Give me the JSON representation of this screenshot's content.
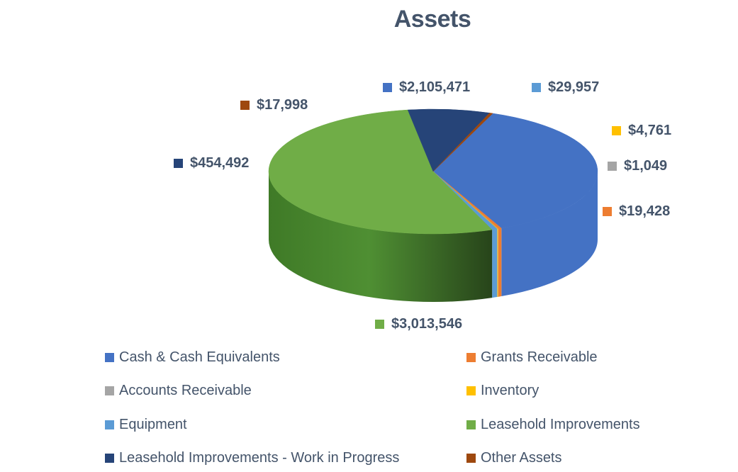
{
  "chart_data": {
    "type": "pie",
    "title": "Assets",
    "categories": [
      "Cash & Cash Equivalents",
      "Grants Receivable",
      "Accounts Receivable",
      "Inventory",
      "Equipment",
      "Leasehold Improvements",
      "Leasehold Improvements - Work in Progress",
      "Other Assets"
    ],
    "values": [
      2105471,
      19428,
      1049,
      4761,
      29957,
      3013546,
      454492,
      17998
    ],
    "data_labels": [
      "$2,105,471",
      "$19,428",
      "$1,049",
      "$4,761",
      "$29,957",
      "$3,013,546",
      "$454,492",
      "$17,998"
    ],
    "colors": [
      "#4472C4",
      "#ED7D31",
      "#A5A5A5",
      "#FFC000",
      "#5B9BD5",
      "#70AD47",
      "#264478",
      "#9E480E"
    ],
    "legend_position": "bottom",
    "style": "3d-pie"
  }
}
